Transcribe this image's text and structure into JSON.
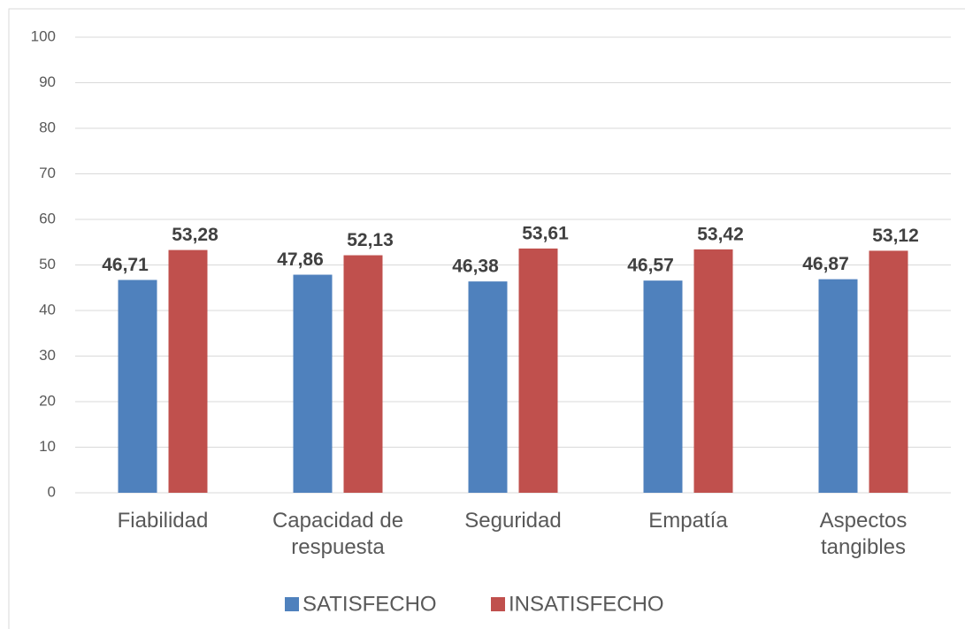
{
  "chart_data": {
    "type": "bar",
    "categories": [
      "Fiabilidad",
      "Capacidad de respuesta",
      "Seguridad",
      "Empatía",
      "Aspectos tangibles"
    ],
    "series": [
      {
        "name": "SATISFECHO",
        "color": "#4f81bd",
        "values": [
          46.71,
          47.86,
          46.38,
          46.57,
          46.87
        ],
        "value_labels": [
          "46,71",
          "47,86",
          "46,38",
          "46,57",
          "46,87"
        ]
      },
      {
        "name": "INSATISFECHO",
        "color": "#c0504d",
        "values": [
          53.28,
          52.13,
          53.61,
          53.42,
          53.12
        ],
        "value_labels": [
          "53,28",
          "52,13",
          "53,61",
          "53,42",
          "53,12"
        ]
      }
    ],
    "ylim": [
      0,
      100
    ],
    "yticks": [
      0,
      10,
      20,
      30,
      40,
      50,
      60,
      70,
      80,
      90,
      100
    ],
    "grid": true,
    "legend": "bottom"
  }
}
